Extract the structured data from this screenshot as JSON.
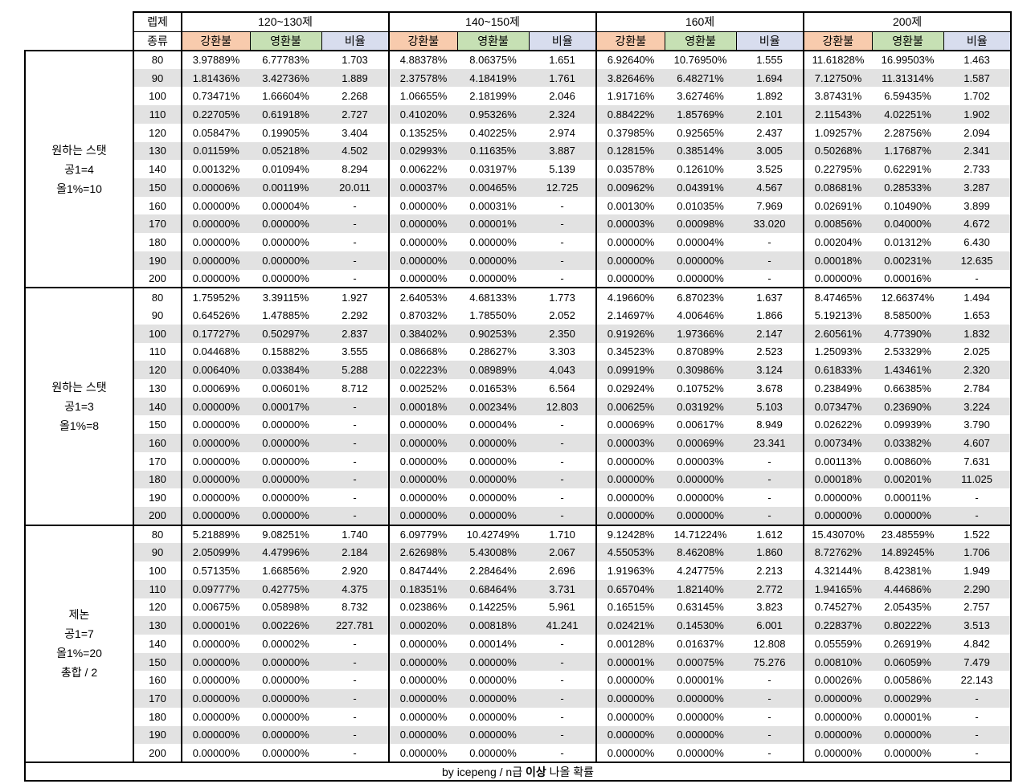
{
  "header": {
    "level_req_label": "렙제",
    "kind_label": "종류",
    "brackets": [
      "120~130제",
      "140~150제",
      "160제",
      "200제"
    ],
    "sub_columns": [
      "강환불",
      "영환불",
      "비율"
    ]
  },
  "colors": {
    "gang_header": "#F8CBAD",
    "yeong_header": "#C6E0B4",
    "ratio_header": "#D8DDEE",
    "row_stripe": "#E2E2E2",
    "border": "#000000"
  },
  "levels": [
    "80",
    "90",
    "100",
    "110",
    "120",
    "130",
    "140",
    "150",
    "160",
    "170",
    "180",
    "190",
    "200"
  ],
  "groups": [
    {
      "label_lines": [
        "원하는 스탯",
        "공1=4",
        "올1%=10"
      ],
      "rows": [
        [
          "3.97889%",
          "6.77783%",
          "1.703",
          "4.88378%",
          "8.06375%",
          "1.651",
          "6.92640%",
          "10.76950%",
          "1.555",
          "11.61828%",
          "16.99503%",
          "1.463"
        ],
        [
          "1.81436%",
          "3.42736%",
          "1.889",
          "2.37578%",
          "4.18419%",
          "1.761",
          "3.82646%",
          "6.48271%",
          "1.694",
          "7.12750%",
          "11.31314%",
          "1.587"
        ],
        [
          "0.73471%",
          "1.66604%",
          "2.268",
          "1.06655%",
          "2.18199%",
          "2.046",
          "1.91716%",
          "3.62746%",
          "1.892",
          "3.87431%",
          "6.59435%",
          "1.702"
        ],
        [
          "0.22705%",
          "0.61918%",
          "2.727",
          "0.41020%",
          "0.95326%",
          "2.324",
          "0.88422%",
          "1.85769%",
          "2.101",
          "2.11543%",
          "4.02251%",
          "1.902"
        ],
        [
          "0.05847%",
          "0.19905%",
          "3.404",
          "0.13525%",
          "0.40225%",
          "2.974",
          "0.37985%",
          "0.92565%",
          "2.437",
          "1.09257%",
          "2.28756%",
          "2.094"
        ],
        [
          "0.01159%",
          "0.05218%",
          "4.502",
          "0.02993%",
          "0.11635%",
          "3.887",
          "0.12815%",
          "0.38514%",
          "3.005",
          "0.50268%",
          "1.17687%",
          "2.341"
        ],
        [
          "0.00132%",
          "0.01094%",
          "8.294",
          "0.00622%",
          "0.03197%",
          "5.139",
          "0.03578%",
          "0.12610%",
          "3.525",
          "0.22795%",
          "0.62291%",
          "2.733"
        ],
        [
          "0.00006%",
          "0.00119%",
          "20.011",
          "0.00037%",
          "0.00465%",
          "12.725",
          "0.00962%",
          "0.04391%",
          "4.567",
          "0.08681%",
          "0.28533%",
          "3.287"
        ],
        [
          "0.00000%",
          "0.00004%",
          "-",
          "0.00000%",
          "0.00031%",
          "-",
          "0.00130%",
          "0.01035%",
          "7.969",
          "0.02691%",
          "0.10490%",
          "3.899"
        ],
        [
          "0.00000%",
          "0.00000%",
          "-",
          "0.00000%",
          "0.00001%",
          "-",
          "0.00003%",
          "0.00098%",
          "33.020",
          "0.00856%",
          "0.04000%",
          "4.672"
        ],
        [
          "0.00000%",
          "0.00000%",
          "-",
          "0.00000%",
          "0.00000%",
          "-",
          "0.00000%",
          "0.00004%",
          "-",
          "0.00204%",
          "0.01312%",
          "6.430"
        ],
        [
          "0.00000%",
          "0.00000%",
          "-",
          "0.00000%",
          "0.00000%",
          "-",
          "0.00000%",
          "0.00000%",
          "-",
          "0.00018%",
          "0.00231%",
          "12.635"
        ],
        [
          "0.00000%",
          "0.00000%",
          "-",
          "0.00000%",
          "0.00000%",
          "-",
          "0.00000%",
          "0.00000%",
          "-",
          "0.00000%",
          "0.00016%",
          "-"
        ]
      ]
    },
    {
      "label_lines": [
        "원하는 스탯",
        "공1=3",
        "올1%=8"
      ],
      "rows": [
        [
          "1.75952%",
          "3.39115%",
          "1.927",
          "2.64053%",
          "4.68133%",
          "1.773",
          "4.19660%",
          "6.87023%",
          "1.637",
          "8.47465%",
          "12.66374%",
          "1.494"
        ],
        [
          "0.64526%",
          "1.47885%",
          "2.292",
          "0.87032%",
          "1.78550%",
          "2.052",
          "2.14697%",
          "4.00646%",
          "1.866",
          "5.19213%",
          "8.58500%",
          "1.653"
        ],
        [
          "0.17727%",
          "0.50297%",
          "2.837",
          "0.38402%",
          "0.90253%",
          "2.350",
          "0.91926%",
          "1.97366%",
          "2.147",
          "2.60561%",
          "4.77390%",
          "1.832"
        ],
        [
          "0.04468%",
          "0.15882%",
          "3.555",
          "0.08668%",
          "0.28627%",
          "3.303",
          "0.34523%",
          "0.87089%",
          "2.523",
          "1.25093%",
          "2.53329%",
          "2.025"
        ],
        [
          "0.00640%",
          "0.03384%",
          "5.288",
          "0.02223%",
          "0.08989%",
          "4.043",
          "0.09919%",
          "0.30986%",
          "3.124",
          "0.61833%",
          "1.43461%",
          "2.320"
        ],
        [
          "0.00069%",
          "0.00601%",
          "8.712",
          "0.00252%",
          "0.01653%",
          "6.564",
          "0.02924%",
          "0.10752%",
          "3.678",
          "0.23849%",
          "0.66385%",
          "2.784"
        ],
        [
          "0.00000%",
          "0.00017%",
          "-",
          "0.00018%",
          "0.00234%",
          "12.803",
          "0.00625%",
          "0.03192%",
          "5.103",
          "0.07347%",
          "0.23690%",
          "3.224"
        ],
        [
          "0.00000%",
          "0.00000%",
          "-",
          "0.00000%",
          "0.00004%",
          "-",
          "0.00069%",
          "0.00617%",
          "8.949",
          "0.02622%",
          "0.09939%",
          "3.790"
        ],
        [
          "0.00000%",
          "0.00000%",
          "-",
          "0.00000%",
          "0.00000%",
          "-",
          "0.00003%",
          "0.00069%",
          "23.341",
          "0.00734%",
          "0.03382%",
          "4.607"
        ],
        [
          "0.00000%",
          "0.00000%",
          "-",
          "0.00000%",
          "0.00000%",
          "-",
          "0.00000%",
          "0.00003%",
          "-",
          "0.00113%",
          "0.00860%",
          "7.631"
        ],
        [
          "0.00000%",
          "0.00000%",
          "-",
          "0.00000%",
          "0.00000%",
          "-",
          "0.00000%",
          "0.00000%",
          "-",
          "0.00018%",
          "0.00201%",
          "11.025"
        ],
        [
          "0.00000%",
          "0.00000%",
          "-",
          "0.00000%",
          "0.00000%",
          "-",
          "0.00000%",
          "0.00000%",
          "-",
          "0.00000%",
          "0.00011%",
          "-"
        ],
        [
          "0.00000%",
          "0.00000%",
          "-",
          "0.00000%",
          "0.00000%",
          "-",
          "0.00000%",
          "0.00000%",
          "-",
          "0.00000%",
          "0.00000%",
          "-"
        ]
      ]
    },
    {
      "label_lines": [
        "제논",
        "공1=7",
        "올1%=20",
        "총합 / 2"
      ],
      "rows": [
        [
          "5.21889%",
          "9.08251%",
          "1.740",
          "6.09779%",
          "10.42749%",
          "1.710",
          "9.12428%",
          "14.71224%",
          "1.612",
          "15.43070%",
          "23.48559%",
          "1.522"
        ],
        [
          "2.05099%",
          "4.47996%",
          "2.184",
          "2.62698%",
          "5.43008%",
          "2.067",
          "4.55053%",
          "8.46208%",
          "1.860",
          "8.72762%",
          "14.89245%",
          "1.706"
        ],
        [
          "0.57135%",
          "1.66856%",
          "2.920",
          "0.84744%",
          "2.28464%",
          "2.696",
          "1.91963%",
          "4.24775%",
          "2.213",
          "4.32144%",
          "8.42381%",
          "1.949"
        ],
        [
          "0.09777%",
          "0.42775%",
          "4.375",
          "0.18351%",
          "0.68464%",
          "3.731",
          "0.65704%",
          "1.82140%",
          "2.772",
          "1.94165%",
          "4.44686%",
          "2.290"
        ],
        [
          "0.00675%",
          "0.05898%",
          "8.732",
          "0.02386%",
          "0.14225%",
          "5.961",
          "0.16515%",
          "0.63145%",
          "3.823",
          "0.74527%",
          "2.05435%",
          "2.757"
        ],
        [
          "0.00001%",
          "0.00226%",
          "227.781",
          "0.00020%",
          "0.00818%",
          "41.241",
          "0.02421%",
          "0.14530%",
          "6.001",
          "0.22837%",
          "0.80222%",
          "3.513"
        ],
        [
          "0.00000%",
          "0.00002%",
          "-",
          "0.00000%",
          "0.00014%",
          "-",
          "0.00128%",
          "0.01637%",
          "12.808",
          "0.05559%",
          "0.26919%",
          "4.842"
        ],
        [
          "0.00000%",
          "0.00000%",
          "-",
          "0.00000%",
          "0.00000%",
          "-",
          "0.00001%",
          "0.00075%",
          "75.276",
          "0.00810%",
          "0.06059%",
          "7.479"
        ],
        [
          "0.00000%",
          "0.00000%",
          "-",
          "0.00000%",
          "0.00000%",
          "-",
          "0.00000%",
          "0.00001%",
          "-",
          "0.00026%",
          "0.00586%",
          "22.143"
        ],
        [
          "0.00000%",
          "0.00000%",
          "-",
          "0.00000%",
          "0.00000%",
          "-",
          "0.00000%",
          "0.00000%",
          "-",
          "0.00000%",
          "0.00029%",
          "-"
        ],
        [
          "0.00000%",
          "0.00000%",
          "-",
          "0.00000%",
          "0.00000%",
          "-",
          "0.00000%",
          "0.00000%",
          "-",
          "0.00000%",
          "0.00001%",
          "-"
        ],
        [
          "0.00000%",
          "0.00000%",
          "-",
          "0.00000%",
          "0.00000%",
          "-",
          "0.00000%",
          "0.00000%",
          "-",
          "0.00000%",
          "0.00000%",
          "-"
        ],
        [
          "0.00000%",
          "0.00000%",
          "-",
          "0.00000%",
          "0.00000%",
          "-",
          "0.00000%",
          "0.00000%",
          "-",
          "0.00000%",
          "0.00000%",
          "-"
        ]
      ]
    }
  ],
  "footer": {
    "prefix": "by icepeng / n급 ",
    "bold": "이상",
    "suffix": " 나올 확률"
  }
}
